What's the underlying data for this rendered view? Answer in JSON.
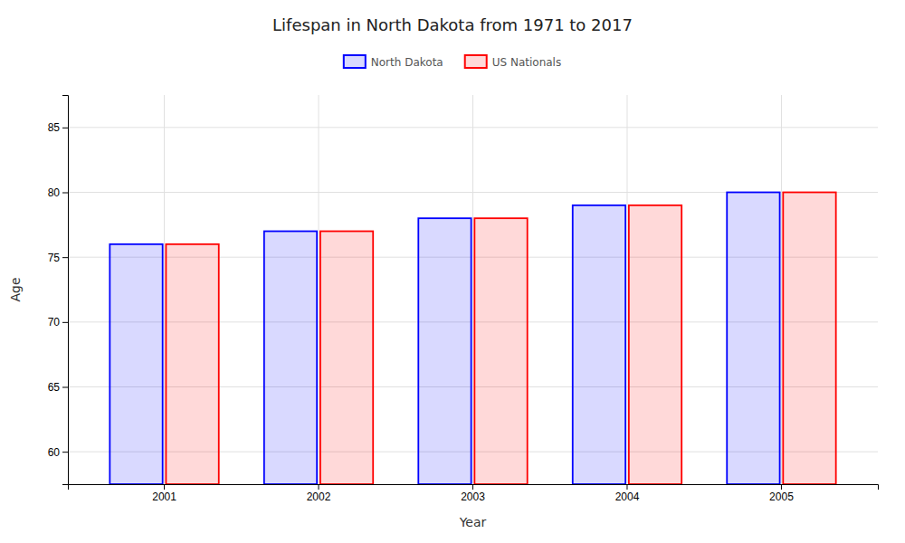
{
  "chart_data": {
    "type": "bar",
    "title": "Lifespan in North Dakota from 1971 to 2017",
    "x_label": "Year",
    "y_label": "Age",
    "categories": [
      "2001",
      "2002",
      "2003",
      "2004",
      "2005"
    ],
    "series": [
      {
        "name": "North Dakota",
        "color": "#0000ff",
        "values": [
          76,
          77,
          78,
          79,
          80
        ]
      },
      {
        "name": "US Nationals",
        "color": "#ff0000",
        "values": [
          76,
          77,
          78,
          79,
          80
        ]
      }
    ],
    "ylim": [
      57.5,
      87.5
    ],
    "yticks": [
      60,
      65,
      70,
      75,
      80,
      85
    ],
    "grid": true,
    "legend": "top"
  }
}
